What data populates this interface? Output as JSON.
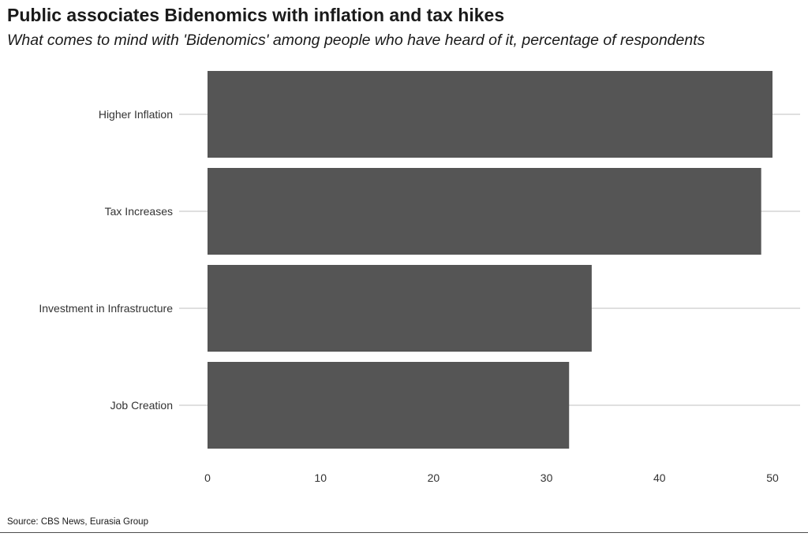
{
  "chart_data": {
    "type": "bar",
    "orientation": "horizontal",
    "title": "Public associates Bidenomics with inflation and tax hikes",
    "subtitle": "What comes to mind with 'Bidenomics' among people who have heard of it, percentage of respondents",
    "categories": [
      "Higher Inflation",
      "Tax Increases",
      "Investment in Infrastructure",
      "Job Creation"
    ],
    "values": [
      50,
      49,
      34,
      32
    ],
    "xlabel": "",
    "ylabel": "",
    "xlim": [
      0,
      52.5
    ],
    "xticks": [
      0,
      10,
      20,
      30,
      40,
      50
    ],
    "grid": "horizontal lines through category centers",
    "bar_color": "#555555",
    "gridline_color": "#cccccc",
    "source": "Source: CBS News, Eurasia Group"
  }
}
